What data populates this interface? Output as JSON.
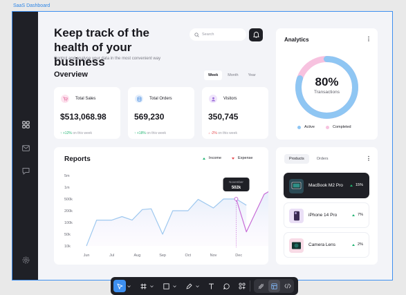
{
  "frame_label": "SaaS Dashboard",
  "colors": {
    "accent": "#3d8ff0",
    "dark": "#1f2026",
    "income": "#22b573",
    "expense": "#e5484d",
    "line_blue": "#9ec8ef",
    "line_purple": "#c76bd6",
    "donut_active": "#8fc6f3",
    "donut_completed": "#f7c2df"
  },
  "sidebar": {
    "icons": [
      "grid-icon",
      "mail-icon",
      "chat-icon",
      "settings-icon"
    ]
  },
  "header": {
    "title": "Keep track of the health of your business",
    "subtitle": "Control and analyse your data in the most convenient way",
    "search_placeholder": "Search"
  },
  "overview": {
    "title": "Overview",
    "tabs": [
      {
        "label": "Week",
        "active": true
      },
      {
        "label": "Month",
        "active": false
      },
      {
        "label": "Year",
        "active": false
      }
    ],
    "cards": [
      {
        "label": "Total Sales",
        "value": "$513,068.98",
        "change": "+12%",
        "direction": "up",
        "note": "on this week",
        "icon": "cart-icon",
        "icon_bg": "#fde3ee",
        "icon_color": "#e2679b"
      },
      {
        "label": "Total Orders",
        "value": "569,230",
        "change": "+18%",
        "direction": "up",
        "note": "on this week",
        "icon": "database-icon",
        "icon_bg": "#e3eefc",
        "icon_color": "#4d8fe0"
      },
      {
        "label": "Visitors",
        "value": "350,745",
        "change": "-2%",
        "direction": "down",
        "note": "on this week",
        "icon": "user-icon",
        "icon_bg": "#efe5fb",
        "icon_color": "#9b6bd9"
      }
    ]
  },
  "reports": {
    "title": "Reports",
    "legend": {
      "income": "Income",
      "expense": "Expense"
    },
    "tooltip": {
      "label": "November",
      "value": "502k"
    }
  },
  "chart_data": {
    "type": "line",
    "title": "Reports",
    "y_ticks": [
      "5m",
      "1m",
      "500k",
      "200k",
      "100k",
      "50k",
      "10k"
    ],
    "x_labels": [
      "Jun",
      "Jul",
      "Aug",
      "Sep",
      "Oct",
      "Nov",
      "Dec"
    ],
    "series": [
      {
        "name": "Income",
        "points": [
          [
            0.0,
            10
          ],
          [
            0.4,
            120
          ],
          [
            1.0,
            120
          ],
          [
            1.4,
            150
          ],
          [
            1.8,
            120
          ],
          [
            2.2,
            230
          ],
          [
            2.55,
            250
          ],
          [
            3.0,
            50
          ],
          [
            3.4,
            200
          ],
          [
            4.0,
            200
          ],
          [
            4.4,
            490
          ],
          [
            5.0,
            270
          ],
          [
            5.4,
            500
          ],
          [
            5.9,
            500
          ],
          [
            6.3,
            340
          ]
        ]
      },
      {
        "name": "Expense",
        "points": [
          [
            5.9,
            500
          ],
          [
            6.3,
            60
          ],
          [
            7.0,
            700
          ],
          [
            7.55,
            1400
          ]
        ]
      }
    ],
    "highlight": {
      "x": 5.9,
      "label": "November",
      "value": "502k"
    },
    "grid": false
  },
  "analytics": {
    "title": "Analytics",
    "percent": "80%",
    "percent_value": 80,
    "label": "Transactions",
    "legend": [
      {
        "label": "Active",
        "color": "#8fc6f3"
      },
      {
        "label": "Completed",
        "color": "#f7c2df"
      }
    ]
  },
  "products": {
    "tabs": [
      {
        "label": "Products",
        "active": true
      },
      {
        "label": "Orders",
        "active": false
      }
    ],
    "items": [
      {
        "name": "MacBook M2 Pro",
        "change": "15%",
        "active": true,
        "thumb_bg": "#2b4a55"
      },
      {
        "name": "iPhone 14 Pro",
        "change": "7%",
        "active": false,
        "thumb_bg": "#eadff6"
      },
      {
        "name": "Camera Lens",
        "change": "2%",
        "active": false,
        "thumb_bg": "#f8dbe6"
      }
    ]
  },
  "toolbar": {
    "tools": [
      "move-icon",
      "frame-icon",
      "rectangle-icon",
      "pen-icon",
      "text-icon",
      "comment-icon",
      "components-icon",
      "draw-icon",
      "design-mode-icon",
      "code-icon"
    ]
  }
}
